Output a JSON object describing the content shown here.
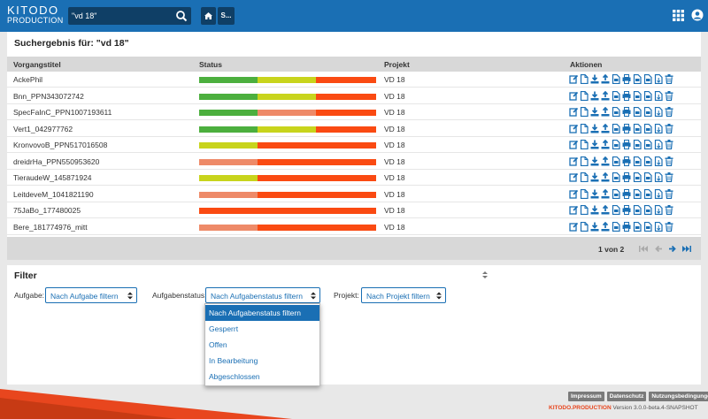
{
  "header": {
    "logo_line1": "KITODO",
    "logo_line2": "PRODUCTION",
    "search_value": "\"vd 18\"",
    "s_button": "S...",
    "colors": {
      "bar": "#1a6fb4",
      "field": "#0f3f66"
    }
  },
  "main": {
    "title": "Suchergebnis für: \"vd 18\"",
    "columns": {
      "title": "Vorgangstitel",
      "status": "Status",
      "project": "Projekt",
      "actions": "Aktionen"
    },
    "rows": [
      {
        "title": "AckePhil",
        "project": "VD 18",
        "status": [
          [
            "green",
            0.33
          ],
          [
            "yellow",
            0.33
          ],
          [
            "orange",
            0.34
          ]
        ]
      },
      {
        "title": "Bnn_PPN343072742",
        "project": "VD 18",
        "status": [
          [
            "green",
            0.33
          ],
          [
            "yellow",
            0.33
          ],
          [
            "orange",
            0.34
          ]
        ]
      },
      {
        "title": "SpecFaInC_PPN1007193611",
        "project": "VD 18",
        "status": [
          [
            "green",
            0.33
          ],
          [
            "salmon",
            0.33
          ],
          [
            "orange",
            0.34
          ]
        ]
      },
      {
        "title": "Vert1_042977762",
        "project": "VD 18",
        "status": [
          [
            "green",
            0.33
          ],
          [
            "yellow",
            0.33
          ],
          [
            "orange",
            0.34
          ]
        ]
      },
      {
        "title": "KronvovoB_PPN517016508",
        "project": "VD 18",
        "status": [
          [
            "yellow",
            0.33
          ],
          [
            "orange",
            0.67
          ]
        ]
      },
      {
        "title": "dreidrHa_PPN550953620",
        "project": "VD 18",
        "status": [
          [
            "salmon",
            0.33
          ],
          [
            "orange",
            0.67
          ]
        ]
      },
      {
        "title": "TieraudeW_145871924",
        "project": "VD 18",
        "status": [
          [
            "yellow",
            0.33
          ],
          [
            "orange",
            0.67
          ]
        ]
      },
      {
        "title": "LeitdeveM_1041821190",
        "project": "VD 18",
        "status": [
          [
            "salmon",
            0.33
          ],
          [
            "orange",
            0.67
          ]
        ]
      },
      {
        "title": "75JaBo_177480025",
        "project": "VD 18",
        "status": [
          [
            "orange",
            1.0
          ]
        ]
      },
      {
        "title": "Bere_181774976_mitt",
        "project": "VD 18",
        "status": [
          [
            "salmon",
            0.33
          ],
          [
            "orange",
            0.67
          ]
        ]
      }
    ],
    "status_colors": {
      "green": "#4caf3e",
      "yellow": "#c8d41c",
      "salmon": "#ee8a68",
      "orange": "#fa4a12"
    },
    "action_icons": [
      "edit-icon",
      "document-icon",
      "download-icon",
      "upload-icon",
      "pdf-icon",
      "print-icon",
      "pdf-icon",
      "pdf-icon",
      "export-icon",
      "delete-icon"
    ],
    "pagination": "1 von 2"
  },
  "filter": {
    "title": "Filter",
    "task_label": "Aufgabe:",
    "task_value": "Nach Aufgabe filtern",
    "taskstatus_label": "Aufgabenstatus:",
    "taskstatus_value": "Nach Aufgabenstatus filtern",
    "project_label": "Projekt:",
    "project_value": "Nach Projekt filtern",
    "options": [
      "Nach Aufgabenstatus filtern",
      "Gesperrt",
      "Offen",
      "In Bearbeitung",
      "Abgeschlossen"
    ]
  },
  "footer": {
    "links": [
      "Impressum",
      "Datenschutz",
      "Nutzungsbedingungen"
    ],
    "brand": "KITODO.PRODUCTION",
    "version": " Version 3.0.0-beta.4-SNAPSHOT",
    "colors": {
      "orange": "#e8461e",
      "blue": "#1a6fb4"
    }
  }
}
